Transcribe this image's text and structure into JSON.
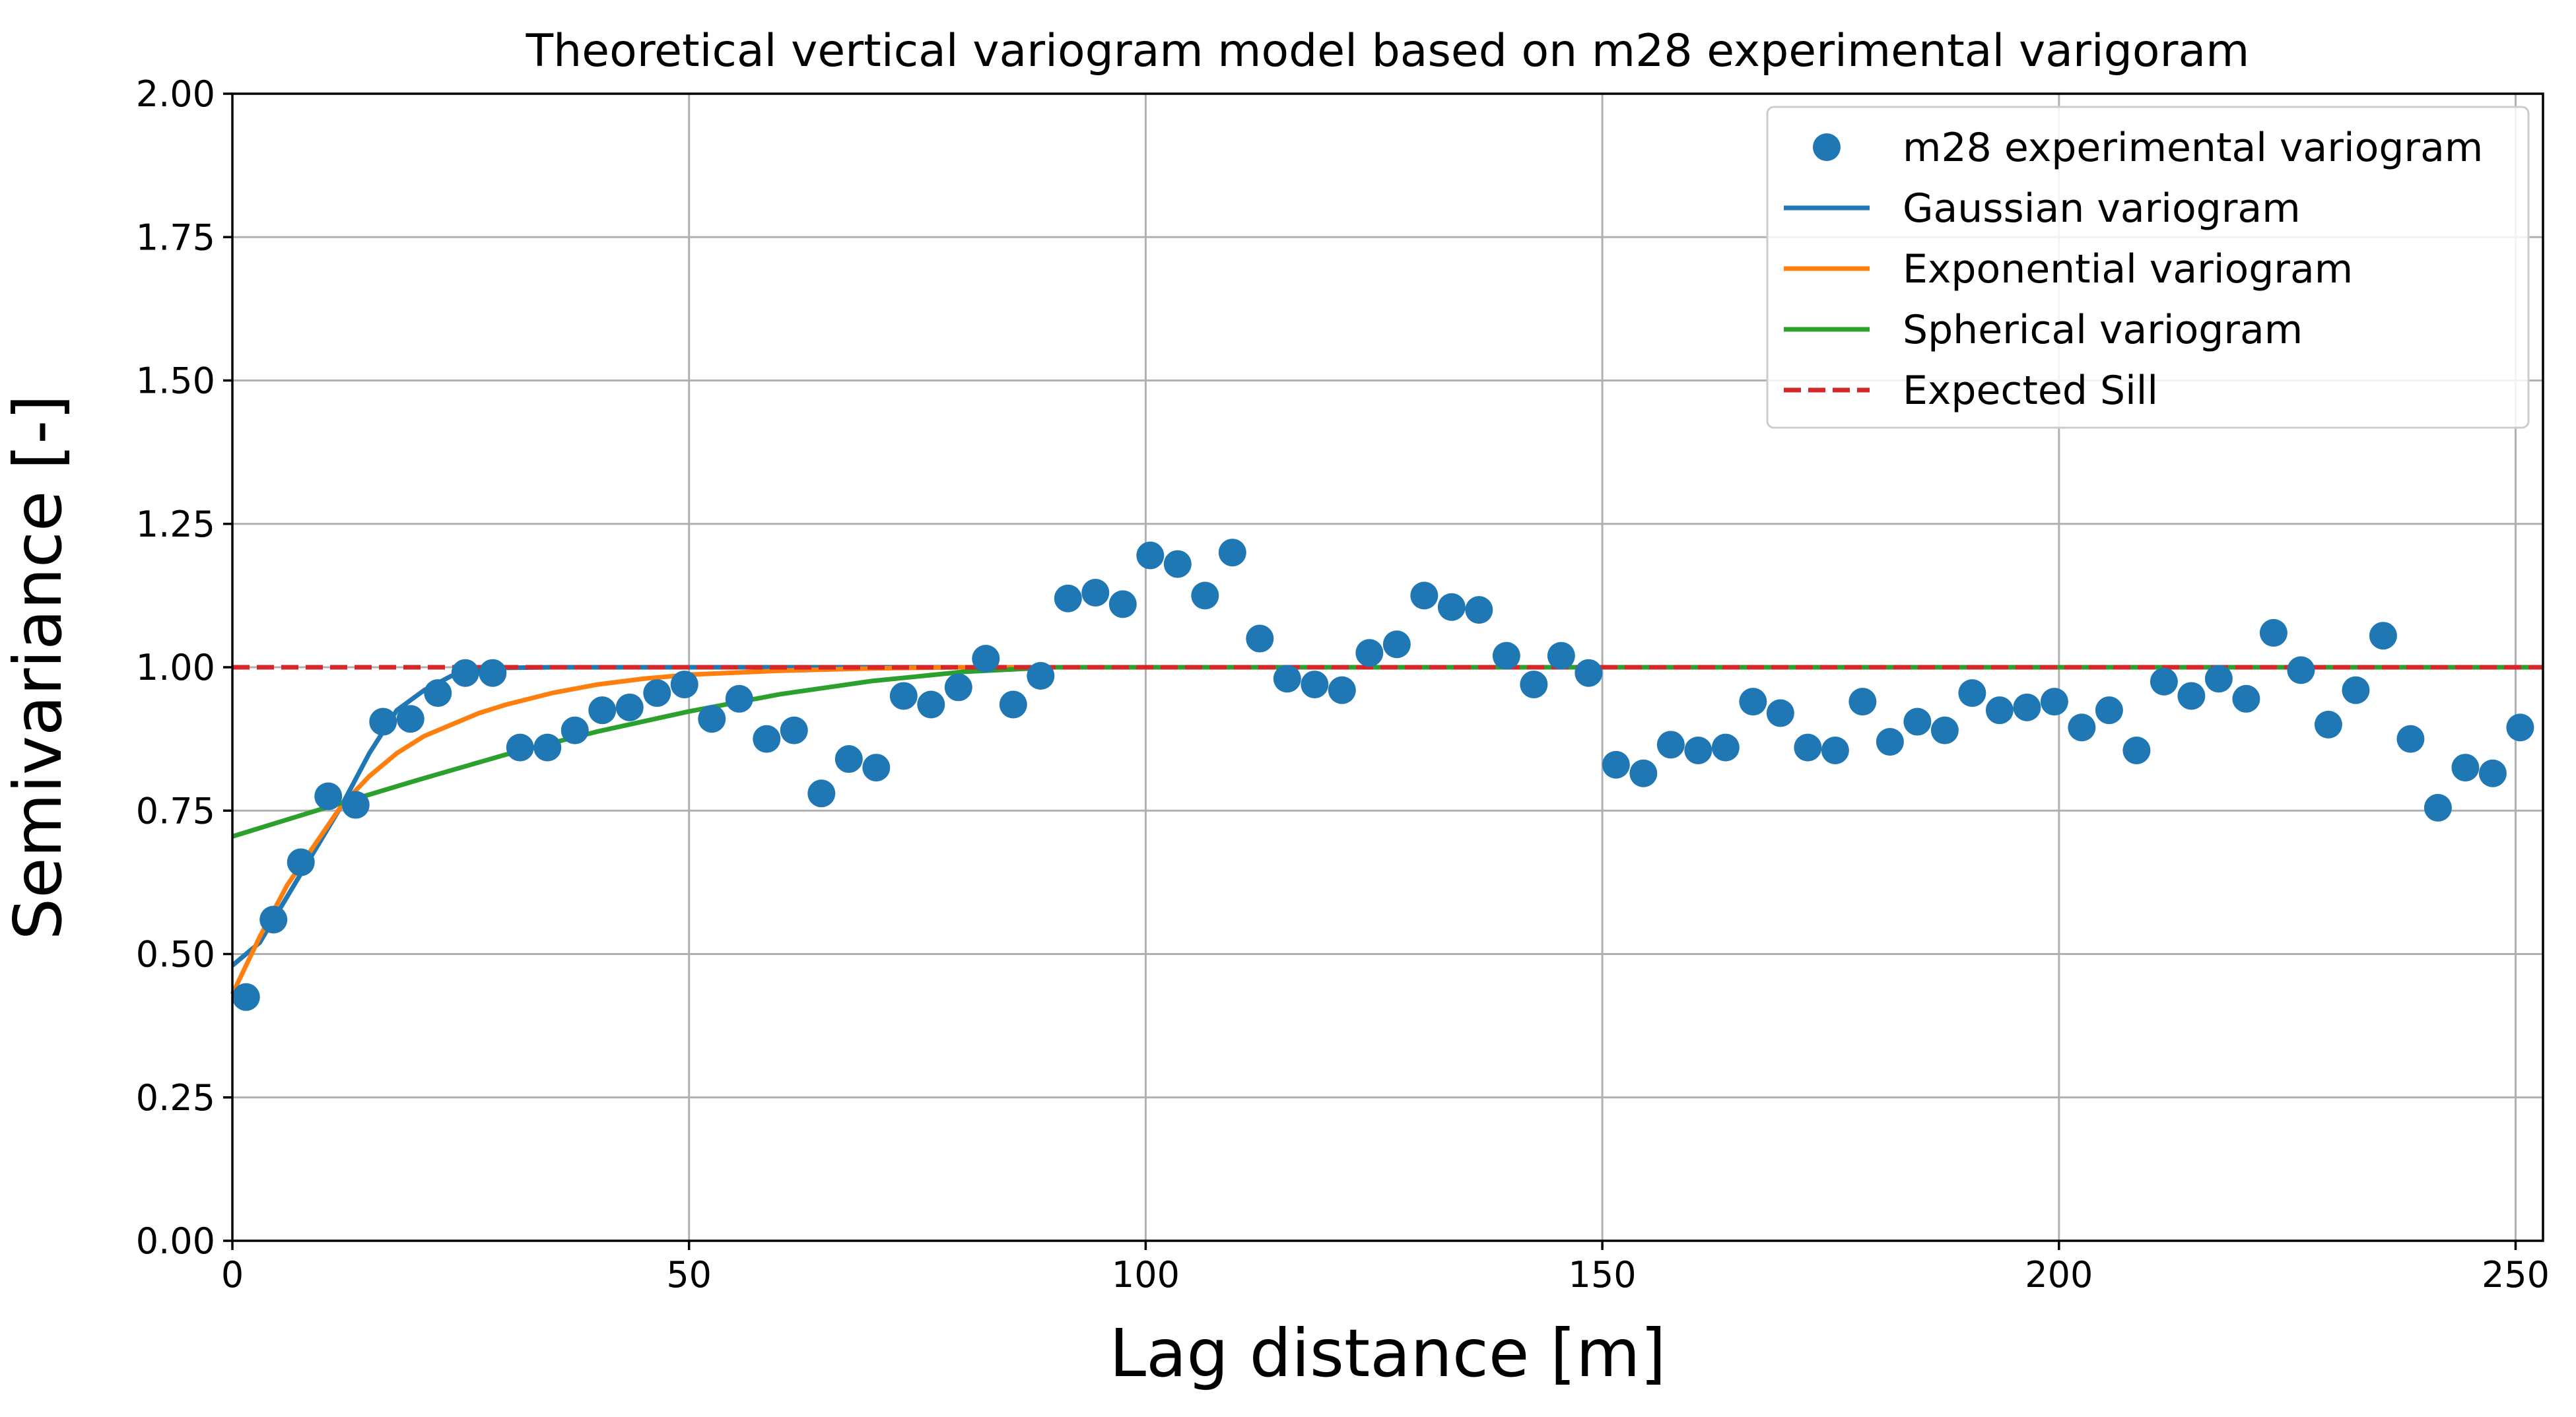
{
  "chart_data": {
    "type": "scatter",
    "title": "Theoretical vertical variogram model based on m28 experimental varigoram",
    "xlabel": "Lag distance [m]",
    "ylabel": "Semivariance [-]",
    "xlim": [
      0,
      253
    ],
    "ylim": [
      0,
      2.0
    ],
    "x_ticks": [
      0,
      50,
      100,
      150,
      200,
      250
    ],
    "x_tick_labels": [
      "0",
      "50",
      "100",
      "150",
      "200",
      "250"
    ],
    "y_ticks": [
      0,
      0.25,
      0.5,
      0.75,
      1.0,
      1.25,
      1.5,
      1.75,
      2.0
    ],
    "y_tick_labels": [
      "0.00",
      "0.25",
      "0.50",
      "0.75",
      "1.00",
      "1.25",
      "1.50",
      "1.75",
      "2.00"
    ],
    "grid": true,
    "legend_position": "top-right",
    "legend": [
      {
        "label": "m28 experimental variogram",
        "kind": "marker",
        "color": "#1f77b4"
      },
      {
        "label": "Gaussian variogram",
        "kind": "line",
        "color": "#1f77b4"
      },
      {
        "label": "Exponential variogram",
        "kind": "line",
        "color": "#ff7f0e"
      },
      {
        "label": "Spherical variogram",
        "kind": "line",
        "color": "#2ca02c"
      },
      {
        "label": "Expected Sill",
        "kind": "dashed",
        "color": "#d62728"
      }
    ],
    "series": [
      {
        "name": "m28 experimental variogram",
        "kind": "scatter",
        "color": "#1f77b4",
        "points": [
          [
            1.5,
            0.425
          ],
          [
            4.5,
            0.56
          ],
          [
            7.5,
            0.66
          ],
          [
            10.5,
            0.775
          ],
          [
            13.5,
            0.76
          ],
          [
            16.5,
            0.905
          ],
          [
            19.5,
            0.91
          ],
          [
            22.5,
            0.955
          ],
          [
            25.5,
            0.99
          ],
          [
            28.5,
            0.99
          ],
          [
            31.5,
            0.86
          ],
          [
            34.5,
            0.86
          ],
          [
            37.5,
            0.89
          ],
          [
            40.5,
            0.925
          ],
          [
            43.5,
            0.93
          ],
          [
            46.5,
            0.955
          ],
          [
            49.5,
            0.97
          ],
          [
            52.5,
            0.91
          ],
          [
            55.5,
            0.945
          ],
          [
            58.5,
            0.875
          ],
          [
            61.5,
            0.89
          ],
          [
            64.5,
            0.78
          ],
          [
            67.5,
            0.84
          ],
          [
            70.5,
            0.825
          ],
          [
            73.5,
            0.95
          ],
          [
            76.5,
            0.935
          ],
          [
            79.5,
            0.965
          ],
          [
            82.5,
            1.015
          ],
          [
            85.5,
            0.935
          ],
          [
            88.5,
            0.985
          ],
          [
            91.5,
            1.12
          ],
          [
            94.5,
            1.13
          ],
          [
            97.5,
            1.11
          ],
          [
            100.5,
            1.195
          ],
          [
            103.5,
            1.18
          ],
          [
            106.5,
            1.125
          ],
          [
            109.5,
            1.2
          ],
          [
            112.5,
            1.05
          ],
          [
            115.5,
            0.98
          ],
          [
            118.5,
            0.97
          ],
          [
            121.5,
            0.96
          ],
          [
            124.5,
            1.025
          ],
          [
            127.5,
            1.04
          ],
          [
            130.5,
            1.125
          ],
          [
            133.5,
            1.105
          ],
          [
            136.5,
            1.1
          ],
          [
            139.5,
            1.02
          ],
          [
            142.5,
            0.97
          ],
          [
            145.5,
            1.02
          ],
          [
            148.5,
            0.99
          ],
          [
            151.5,
            0.83
          ],
          [
            154.5,
            0.815
          ],
          [
            157.5,
            0.865
          ],
          [
            160.5,
            0.855
          ],
          [
            163.5,
            0.86
          ],
          [
            166.5,
            0.94
          ],
          [
            169.5,
            0.92
          ],
          [
            172.5,
            0.86
          ],
          [
            175.5,
            0.855
          ],
          [
            178.5,
            0.94
          ],
          [
            181.5,
            0.87
          ],
          [
            184.5,
            0.905
          ],
          [
            187.5,
            0.89
          ],
          [
            190.5,
            0.955
          ],
          [
            193.5,
            0.925
          ],
          [
            196.5,
            0.93
          ],
          [
            199.5,
            0.94
          ],
          [
            202.5,
            0.895
          ],
          [
            205.5,
            0.925
          ],
          [
            208.5,
            0.855
          ],
          [
            211.5,
            0.975
          ],
          [
            214.5,
            0.95
          ],
          [
            217.5,
            0.98
          ],
          [
            220.5,
            0.945
          ],
          [
            223.5,
            1.06
          ],
          [
            226.5,
            0.995
          ],
          [
            229.5,
            0.9
          ],
          [
            232.5,
            0.96
          ],
          [
            235.5,
            1.055
          ],
          [
            238.5,
            0.875
          ],
          [
            241.5,
            0.755
          ],
          [
            244.5,
            0.825
          ],
          [
            247.5,
            0.815
          ],
          [
            250.5,
            0.895
          ]
        ]
      },
      {
        "name": "Gaussian variogram",
        "kind": "line",
        "color": "#1f77b4",
        "points": [
          [
            0,
            0.48
          ],
          [
            3,
            0.52
          ],
          [
            6,
            0.6
          ],
          [
            9,
            0.68
          ],
          [
            12,
            0.76
          ],
          [
            15,
            0.85
          ],
          [
            18,
            0.925
          ],
          [
            21,
            0.96
          ],
          [
            24,
            0.985
          ],
          [
            27,
            0.995
          ],
          [
            30,
            0.999
          ],
          [
            35,
            1.0
          ],
          [
            253,
            1.0
          ]
        ]
      },
      {
        "name": "Exponential variogram",
        "kind": "line",
        "color": "#ff7f0e",
        "points": [
          [
            0,
            0.43
          ],
          [
            3,
            0.53
          ],
          [
            6,
            0.62
          ],
          [
            9,
            0.69
          ],
          [
            12,
            0.76
          ],
          [
            15,
            0.81
          ],
          [
            18,
            0.85
          ],
          [
            21,
            0.88
          ],
          [
            24,
            0.9
          ],
          [
            27,
            0.92
          ],
          [
            30,
            0.935
          ],
          [
            35,
            0.955
          ],
          [
            40,
            0.97
          ],
          [
            45,
            0.98
          ],
          [
            50,
            0.987
          ],
          [
            60,
            0.994
          ],
          [
            70,
            0.998
          ],
          [
            80,
            1.0
          ],
          [
            253,
            1.0
          ]
        ]
      },
      {
        "name": "Spherical variogram",
        "kind": "line",
        "color": "#2ca02c",
        "points": [
          [
            0,
            0.705
          ],
          [
            10,
            0.754
          ],
          [
            20,
            0.802
          ],
          [
            30,
            0.848
          ],
          [
            40,
            0.888
          ],
          [
            50,
            0.923
          ],
          [
            60,
            0.953
          ],
          [
            70,
            0.976
          ],
          [
            80,
            0.992
          ],
          [
            90,
            1.0
          ],
          [
            253,
            1.0
          ]
        ]
      },
      {
        "name": "Expected Sill",
        "kind": "hline",
        "color": "#d62728",
        "y": 1.0
      }
    ]
  }
}
